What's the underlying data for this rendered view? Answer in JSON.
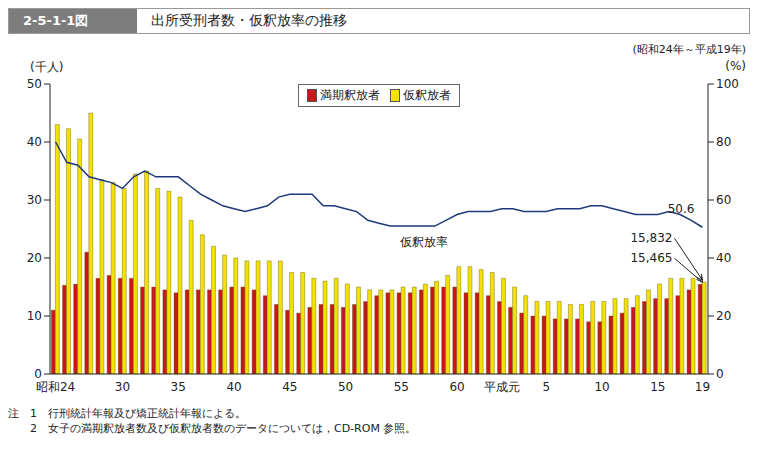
{
  "chart_data": {
    "type": "bar",
    "figure_number": "2-5-1-1図",
    "title": "出所受刑者数・仮釈放率の推移",
    "subtitle": "(昭和24年～平成19年)",
    "y_label": "(千人)",
    "y2_label": "(%)",
    "categories": [
      "昭和24",
      null,
      null,
      null,
      null,
      null,
      "30",
      null,
      null,
      null,
      null,
      "35",
      null,
      null,
      null,
      null,
      "40",
      null,
      null,
      null,
      null,
      "45",
      null,
      null,
      null,
      null,
      "50",
      null,
      null,
      null,
      null,
      "55",
      null,
      null,
      null,
      null,
      "60",
      null,
      null,
      null,
      "平成元",
      null,
      null,
      null,
      "5",
      null,
      null,
      null,
      null,
      "10",
      null,
      null,
      null,
      null,
      "15",
      null,
      null,
      null,
      "19"
    ],
    "series": [
      {
        "name": "満期釈放者",
        "color": "#c8161d",
        "values": [
          11,
          15.3,
          15.5,
          21,
          16.5,
          17,
          16.5,
          16.5,
          15,
          15,
          14.5,
          14,
          14.5,
          14.5,
          14.5,
          14.5,
          15,
          15,
          14.5,
          13.5,
          12,
          11,
          10.5,
          11.5,
          12,
          12,
          11.5,
          12,
          12.5,
          13.5,
          14,
          14,
          14,
          14.5,
          15,
          15,
          15,
          14,
          14,
          13.5,
          12.5,
          11.5,
          10.5,
          10,
          10,
          9.5,
          9.5,
          9.5,
          9,
          9,
          10,
          10.5,
          11.5,
          12.5,
          13,
          13,
          13.5,
          14.5,
          15.465
        ]
      },
      {
        "name": "仮釈放者",
        "color": "#f2e200",
        "values": [
          43,
          42.3,
          40.5,
          45,
          33.5,
          33,
          32,
          34.5,
          35,
          32,
          31.5,
          30.5,
          26.5,
          24,
          22,
          20.5,
          20,
          19.5,
          19.5,
          19.5,
          19.5,
          17.5,
          17.5,
          16.5,
          16,
          16.5,
          15.5,
          15,
          14.5,
          14.5,
          14.5,
          15,
          15,
          15.5,
          16,
          17,
          18.5,
          18.5,
          18,
          17.5,
          16.5,
          15,
          13.5,
          12.5,
          12.5,
          12.5,
          12,
          12,
          12.5,
          12.5,
          13,
          13,
          13.5,
          14.5,
          15.5,
          16.5,
          16.5,
          16.5,
          15.832
        ]
      },
      {
        "name": "仮釈放率",
        "type": "line",
        "axis": "y2",
        "color": "#1f3a7a",
        "values": [
          80,
          73,
          72,
          68,
          67,
          66,
          64,
          68,
          70,
          68,
          68,
          68,
          65,
          62,
          60,
          58,
          57,
          56,
          57,
          58,
          61,
          62,
          62,
          62,
          58,
          58,
          57,
          56,
          53,
          52,
          51,
          51,
          51,
          51,
          51,
          53,
          55,
          56,
          56,
          56,
          57,
          57,
          56,
          56,
          56,
          57,
          57,
          57,
          58,
          58,
          57,
          56,
          55,
          55,
          55,
          56,
          55,
          53,
          50.6
        ]
      }
    ],
    "ylim": [
      0,
      50
    ],
    "yticks": [
      0,
      10,
      20,
      30,
      40,
      50
    ],
    "y2lim": [
      0,
      100
    ],
    "y2ticks": [
      0,
      20,
      40,
      60,
      80,
      100
    ],
    "grid": false,
    "legend": "top",
    "annotations": [
      {
        "text": "仮釈放率"
      },
      {
        "text": "50.6",
        "value": 50.6,
        "axis": "y2"
      },
      {
        "text": "15,832",
        "value": 15.832
      },
      {
        "text": "15,465",
        "value": 15.465
      }
    ],
    "notes": [
      "注　1　行刑統計年報及び矯正統計年報による。",
      "　　2　女子の満期釈放者数及び仮釈放者数のデータについては，CD-ROM 参照。"
    ]
  }
}
